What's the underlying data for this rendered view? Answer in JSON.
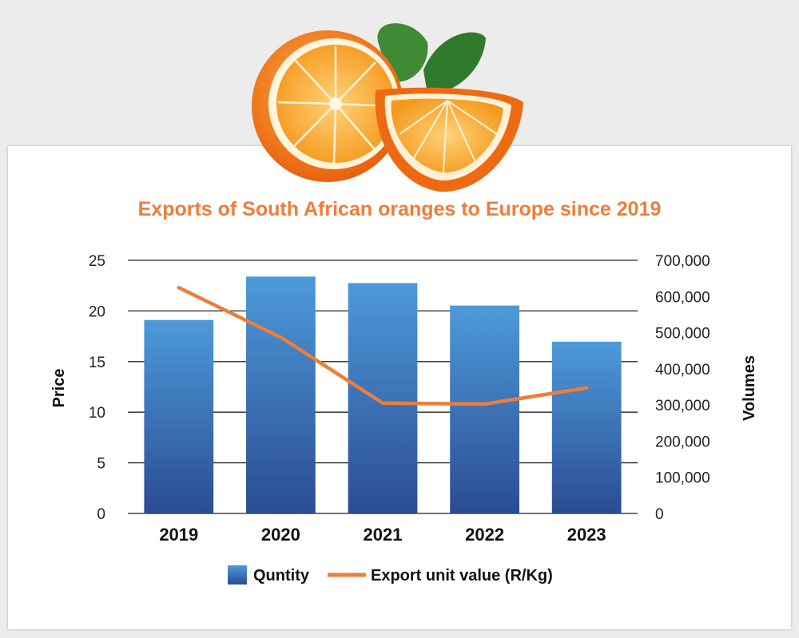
{
  "chart_data": {
    "type": "bar",
    "title": "Exports of South African oranges to Europe since 2019",
    "categories": [
      "2019",
      "2020",
      "2021",
      "2022",
      "2023"
    ],
    "series": [
      {
        "name": "Quntity",
        "type": "bar",
        "axis": "right",
        "color": "#3a7cc4",
        "values": [
          535000,
          655000,
          637000,
          575000,
          475000
        ]
      },
      {
        "name": "Export unit value (R/Kg)",
        "type": "line",
        "axis": "left",
        "color": "#ee7d3a",
        "values": [
          22.3,
          17.4,
          10.9,
          10.8,
          12.4
        ]
      }
    ],
    "ylabel": "Price",
    "y2label": "Volumes",
    "ylim": [
      0,
      25
    ],
    "y2lim": [
      0,
      700000
    ],
    "yticks": [
      "0",
      "5",
      "10",
      "15",
      "20",
      "25"
    ],
    "y2ticks": [
      "0",
      "100,000",
      "200,000",
      "300,000",
      "400,000",
      "500,000",
      "600,000",
      "700,000"
    ],
    "grid": true,
    "legend": "bottom"
  },
  "colors": {
    "accent": "#ee7d3a",
    "bar_top": "#4d9ad9",
    "bar_bottom": "#2b4c94"
  }
}
